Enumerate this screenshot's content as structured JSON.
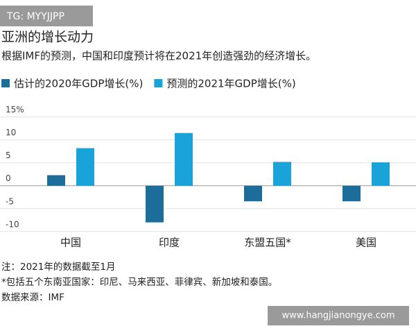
{
  "tag": "TG: MYYJJPP",
  "watermark": "www.hangjianongye.com",
  "chart_data": {
    "type": "bar",
    "title": "亚洲的增长动力",
    "subtitle": "根据IMF的预测，中国和印度预计将在2021年创造强劲的经济增长。",
    "categories": [
      "中国",
      "印度",
      "东盟五国*",
      "美国"
    ],
    "series": [
      {
        "name": "估计的2020年GDP增长(%)",
        "color": "#1c6d99",
        "values": [
          2.3,
          -8.0,
          -3.4,
          -3.4
        ]
      },
      {
        "name": "预测的2021年GDP增长(%)",
        "color": "#1aa3d9",
        "values": [
          8.2,
          11.5,
          5.2,
          5.1
        ]
      }
    ],
    "ylim": [
      -12,
      16
    ],
    "yticks": [
      {
        "value": 15,
        "label": "15%"
      },
      10,
      5,
      0,
      -5,
      -10
    ],
    "grid": true,
    "notes": [
      "注：2021年的数据截至1月",
      "*包括五个东南亚国家：印尼、马来西亚、菲律宾、新加坡和泰国。",
      "数据来源：IMF"
    ]
  }
}
